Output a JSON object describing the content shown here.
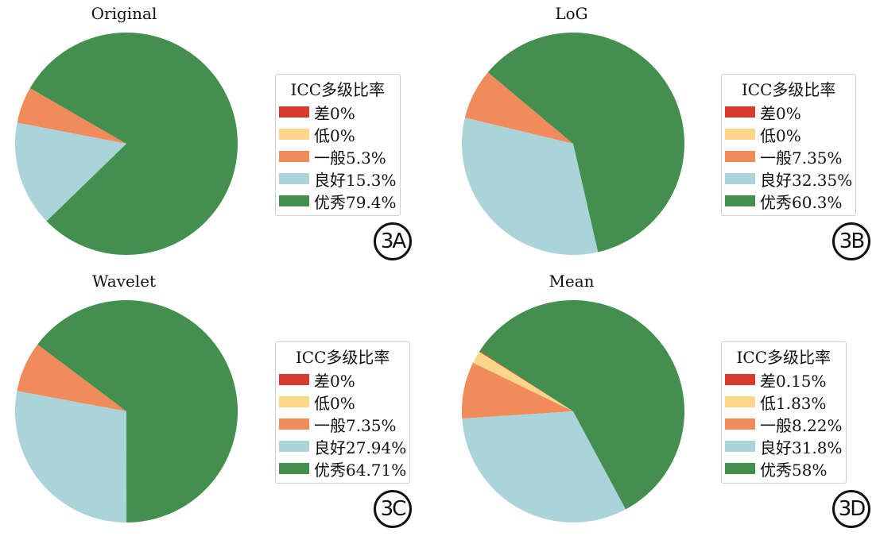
{
  "legend_title": "ICC多级比率",
  "colors": [
    "#d73b2d",
    "#fdd687",
    "#f18b5b",
    "#abd3da",
    "#438f4e"
  ],
  "chart_data": [
    {
      "type": "pie",
      "title": "Original",
      "badge": "3A",
      "start_angle_deg": 150,
      "categories": [
        "差",
        "低",
        "一般",
        "良好",
        "优秀"
      ],
      "values": [
        0,
        0,
        5.3,
        15.3,
        79.4
      ],
      "legend_labels": [
        "差0%",
        "低0%",
        "一般5.3%",
        "良好15.3%",
        "优秀79.4%"
      ],
      "legend_position": "right"
    },
    {
      "type": "pie",
      "title": "LoG",
      "badge": "3B",
      "start_angle_deg": 140,
      "categories": [
        "差",
        "低",
        "一般",
        "良好",
        "优秀"
      ],
      "values": [
        0,
        0,
        7.35,
        32.35,
        60.3
      ],
      "legend_labels": [
        "差0%",
        "低0%",
        "一般7.35%",
        "良好32.35%",
        "优秀60.3%"
      ],
      "legend_position": "right"
    },
    {
      "type": "pie",
      "title": "Wavelet",
      "badge": "3C",
      "start_angle_deg": 143,
      "categories": [
        "差",
        "低",
        "一般",
        "良好",
        "优秀"
      ],
      "values": [
        0,
        0,
        7.35,
        27.94,
        64.71
      ],
      "legend_labels": [
        "差0%",
        "低0%",
        "一般7.35%",
        "良好27.94%",
        "优秀64.71%"
      ],
      "legend_position": "right"
    },
    {
      "type": "pie",
      "title": "Mean",
      "badge": "3D",
      "start_angle_deg": 147,
      "categories": [
        "差",
        "低",
        "一般",
        "良好",
        "优秀"
      ],
      "values": [
        0.15,
        1.83,
        8.22,
        31.8,
        58
      ],
      "legend_labels": [
        "差0.15%",
        "低1.83%",
        "一般8.22%",
        "良好31.8%",
        "优秀58%"
      ],
      "legend_position": "right"
    }
  ]
}
